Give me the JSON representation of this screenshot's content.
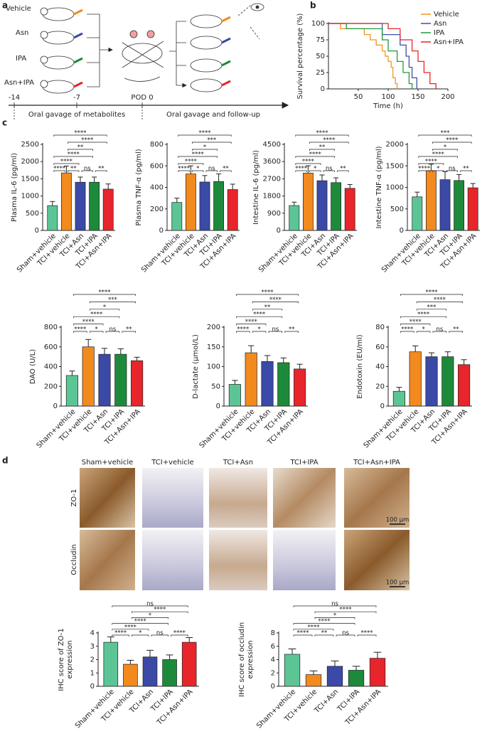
{
  "panel_labels": [
    "a",
    "b",
    "c",
    "d"
  ],
  "schematic": {
    "groups": [
      "Vehicle",
      "Asn",
      "IPA",
      "Asn+IPA"
    ],
    "timeline": [
      "-14",
      "-7",
      "POD 0"
    ],
    "phases": [
      "Oral gavage of metabolites",
      "Oral gavage and follow-up"
    ]
  },
  "images": {
    "columns": [
      "Sham+vehicle",
      "TCI+vehicle",
      "TCI+Asn",
      "TCI+IPA",
      "TCI+Asn+IPA"
    ],
    "rows": [
      "ZO-1",
      "Occludin"
    ],
    "scale_bar": "100 μm"
  },
  "chart_data": [
    {
      "type": "line",
      "xlabel": "Time (h)",
      "ylabel": "Survival percentage (%)",
      "xlim": [
        0,
        200
      ],
      "xticks": [
        50,
        100,
        150,
        200
      ],
      "ylim": [
        0,
        100
      ],
      "yticks": [
        0,
        25,
        50,
        75,
        100
      ],
      "legend": "upper right",
      "series": [
        {
          "name": "Vehicle",
          "color": "#f7941d",
          "x": [
            0,
            20,
            20,
            60,
            60,
            70,
            70,
            80,
            80,
            90,
            90,
            95,
            95,
            100,
            100,
            105,
            105,
            108,
            108,
            112,
            112,
            115,
            115
          ],
          "values": [
            100,
            100,
            92,
            92,
            83,
            83,
            75,
            75,
            67,
            67,
            58,
            58,
            50,
            50,
            42,
            42,
            33,
            33,
            17,
            17,
            8,
            8,
            0
          ]
        },
        {
          "name": "Asn",
          "color": "#3d52a8",
          "x": [
            0,
            90,
            90,
            120,
            120,
            130,
            130,
            135,
            135,
            140,
            140,
            148,
            148
          ],
          "values": [
            100,
            100,
            83,
            83,
            67,
            67,
            50,
            50,
            33,
            33,
            17,
            17,
            0
          ]
        },
        {
          "name": "IPA",
          "color": "#1e9a3f",
          "x": [
            0,
            30,
            30,
            90,
            90,
            100,
            100,
            115,
            115,
            125,
            125,
            135,
            135,
            140,
            140
          ],
          "values": [
            100,
            100,
            92,
            92,
            75,
            75,
            58,
            58,
            42,
            42,
            25,
            25,
            8,
            8,
            0
          ]
        },
        {
          "name": "Asn+IPA",
          "color": "#e8252a",
          "x": [
            0,
            100,
            100,
            120,
            120,
            140,
            140,
            150,
            150,
            160,
            160,
            170,
            170,
            180,
            180
          ],
          "values": [
            100,
            100,
            92,
            92,
            75,
            75,
            58,
            58,
            42,
            42,
            25,
            25,
            8,
            8,
            0
          ]
        }
      ]
    },
    {
      "type": "bar",
      "ylabel": "Plasma IL-6 (pg/ml)",
      "categories": [
        "Sham+vehicle",
        "TCI+vehicle",
        "TCI+Asn",
        "TCI+IPA",
        "TCI+Asn+IPA"
      ],
      "colors": [
        "#5cc596",
        "#f28a1e",
        "#3b49a7",
        "#1d8a3b",
        "#e8252a"
      ],
      "values": [
        720,
        1670,
        1400,
        1400,
        1200
      ],
      "errors": [
        120,
        200,
        150,
        150,
        150
      ],
      "ylim": [
        0,
        2500
      ],
      "yticks": [
        0,
        500,
        1000,
        1500,
        2000,
        2500
      ],
      "brackets": [
        {
          "from": 0,
          "to": 1,
          "label": "****"
        },
        {
          "from": 1,
          "to": 2,
          "label": "**"
        },
        {
          "from": 2,
          "to": 3,
          "label": "ns"
        },
        {
          "from": 3,
          "to": 4,
          "label": "**"
        },
        {
          "from": 0,
          "to": 2,
          "label": "****"
        },
        {
          "from": 0,
          "to": 3,
          "label": "****"
        },
        {
          "from": 1,
          "to": 3,
          "label": "**"
        },
        {
          "from": 1,
          "to": 4,
          "label": "****"
        },
        {
          "from": 0,
          "to": 4,
          "label": "****"
        }
      ]
    },
    {
      "type": "bar",
      "ylabel": "Plasma TNF-α (pg/ml)",
      "categories": [
        "Sham+vehicle",
        "TCI+vehicle",
        "TCI+Asn",
        "TCI+IPA",
        "TCI+Asn+IPA"
      ],
      "colors": [
        "#5cc596",
        "#f28a1e",
        "#3b49a7",
        "#1d8a3b",
        "#e8252a"
      ],
      "values": [
        260,
        525,
        450,
        455,
        380
      ],
      "errors": [
        40,
        75,
        60,
        70,
        50
      ],
      "ylim": [
        0,
        800
      ],
      "yticks": [
        0,
        200,
        400,
        600,
        800
      ],
      "brackets": [
        {
          "from": 0,
          "to": 1,
          "label": "****"
        },
        {
          "from": 1,
          "to": 2,
          "label": "*"
        },
        {
          "from": 2,
          "to": 3,
          "label": "ns"
        },
        {
          "from": 3,
          "to": 4,
          "label": "**"
        },
        {
          "from": 0,
          "to": 2,
          "label": "****"
        },
        {
          "from": 0,
          "to": 3,
          "label": "****"
        },
        {
          "from": 1,
          "to": 3,
          "label": "*"
        },
        {
          "from": 1,
          "to": 4,
          "label": "***"
        },
        {
          "from": 0,
          "to": 4,
          "label": "****"
        }
      ]
    },
    {
      "type": "bar",
      "ylabel": "Intestine IL-6 (pg/ml)",
      "categories": [
        "Sham+vehicle",
        "TCI+vehicle",
        "TCI+Asn",
        "TCI+IPA",
        "TCI+Asn+IPA"
      ],
      "colors": [
        "#5cc596",
        "#f28a1e",
        "#3b49a7",
        "#1d8a3b",
        "#e8252a"
      ],
      "values": [
        1300,
        3000,
        2600,
        2500,
        2200
      ],
      "errors": [
        180,
        380,
        300,
        250,
        200
      ],
      "ylim": [
        0,
        4500
      ],
      "yticks": [
        0,
        900,
        1800,
        2700,
        3600,
        4500
      ],
      "brackets": [
        {
          "from": 0,
          "to": 1,
          "label": "****"
        },
        {
          "from": 1,
          "to": 2,
          "label": "*"
        },
        {
          "from": 2,
          "to": 3,
          "label": "ns"
        },
        {
          "from": 3,
          "to": 4,
          "label": "**"
        },
        {
          "from": 0,
          "to": 2,
          "label": "****"
        },
        {
          "from": 0,
          "to": 3,
          "label": "****"
        },
        {
          "from": 1,
          "to": 3,
          "label": "**"
        },
        {
          "from": 1,
          "to": 4,
          "label": "****"
        },
        {
          "from": 0,
          "to": 4,
          "label": "****"
        }
      ]
    },
    {
      "type": "bar",
      "ylabel": "Intestine TNF-α (pg/ml)",
      "categories": [
        "Sham+vehicle",
        "TCI+vehicle",
        "TCI+Asn",
        "TCI+IPA",
        "TCI+Asn+IPA"
      ],
      "colors": [
        "#5cc596",
        "#f28a1e",
        "#3b49a7",
        "#1d8a3b",
        "#e8252a"
      ],
      "values": [
        780,
        1390,
        1180,
        1160,
        990
      ],
      "errors": [
        110,
        150,
        190,
        140,
        100
      ],
      "ylim": [
        0,
        2000
      ],
      "yticks": [
        0,
        500,
        1000,
        1500,
        2000
      ],
      "brackets": [
        {
          "from": 0,
          "to": 1,
          "label": "****"
        },
        {
          "from": 1,
          "to": 2,
          "label": "*"
        },
        {
          "from": 2,
          "to": 3,
          "label": "ns"
        },
        {
          "from": 3,
          "to": 4,
          "label": "**"
        },
        {
          "from": 0,
          "to": 2,
          "label": "****"
        },
        {
          "from": 0,
          "to": 3,
          "label": "****"
        },
        {
          "from": 1,
          "to": 3,
          "label": "*"
        },
        {
          "from": 1,
          "to": 4,
          "label": "****"
        },
        {
          "from": 0,
          "to": 4,
          "label": "***"
        }
      ]
    },
    {
      "type": "bar",
      "ylabel": "DAO (U/L)",
      "categories": [
        "Sham+vehicle",
        "TCI+vehicle",
        "TCI+Asn",
        "TCI+IPA",
        "TCI+Asn+IPA"
      ],
      "colors": [
        "#5cc596",
        "#f28a1e",
        "#3b49a7",
        "#1d8a3b",
        "#e8252a"
      ],
      "values": [
        310,
        600,
        525,
        525,
        460
      ],
      "errors": [
        45,
        75,
        60,
        55,
        35
      ],
      "ylim": [
        0,
        800
      ],
      "yticks": [
        0,
        200,
        400,
        600,
        800
      ],
      "brackets": [
        {
          "from": 0,
          "to": 1,
          "label": "****"
        },
        {
          "from": 1,
          "to": 2,
          "label": "*"
        },
        {
          "from": 2,
          "to": 3,
          "label": "ns"
        },
        {
          "from": 3,
          "to": 4,
          "label": "**"
        },
        {
          "from": 0,
          "to": 2,
          "label": "****"
        },
        {
          "from": 0,
          "to": 3,
          "label": "****"
        },
        {
          "from": 1,
          "to": 3,
          "label": "*"
        },
        {
          "from": 1,
          "to": 4,
          "label": "***"
        },
        {
          "from": 0,
          "to": 4,
          "label": "****"
        }
      ]
    },
    {
      "type": "bar",
      "ylabel": "D-lactate (μmol/L)",
      "categories": [
        "Sham+vehicle",
        "TCI+vehicle",
        "TCI+Asn",
        "TCI+IPA",
        "TCI+Asn+IPA"
      ],
      "colors": [
        "#5cc596",
        "#f28a1e",
        "#3b49a7",
        "#1d8a3b",
        "#e8252a"
      ],
      "values": [
        55,
        135,
        113,
        110,
        94
      ],
      "errors": [
        10,
        18,
        15,
        12,
        12
      ],
      "ylim": [
        0,
        200
      ],
      "yticks": [
        0,
        50,
        100,
        150,
        200
      ],
      "brackets": [
        {
          "from": 0,
          "to": 1,
          "label": "****"
        },
        {
          "from": 1,
          "to": 2,
          "label": "*"
        },
        {
          "from": 2,
          "to": 3,
          "label": "ns"
        },
        {
          "from": 3,
          "to": 4,
          "label": "**"
        },
        {
          "from": 0,
          "to": 2,
          "label": "****"
        },
        {
          "from": 0,
          "to": 3,
          "label": "****"
        },
        {
          "from": 1,
          "to": 3,
          "label": "**"
        },
        {
          "from": 1,
          "to": 4,
          "label": "****"
        },
        {
          "from": 0,
          "to": 4,
          "label": "****"
        }
      ]
    },
    {
      "type": "bar",
      "ylabel": "Endotoxin (EU/ml)",
      "categories": [
        "Sham+vehicle",
        "TCI+vehicle",
        "TCI+Asn",
        "TCI+IPA",
        "TCI+Asn+IPA"
      ],
      "colors": [
        "#5cc596",
        "#f28a1e",
        "#3b49a7",
        "#1d8a3b",
        "#e8252a"
      ],
      "values": [
        15,
        55,
        50,
        50,
        42
      ],
      "errors": [
        4,
        6,
        4,
        5,
        5
      ],
      "ylim": [
        0,
        80
      ],
      "yticks": [
        0,
        20,
        40,
        60,
        80
      ],
      "brackets": [
        {
          "from": 0,
          "to": 1,
          "label": "****"
        },
        {
          "from": 1,
          "to": 2,
          "label": "*"
        },
        {
          "from": 2,
          "to": 3,
          "label": "ns"
        },
        {
          "from": 3,
          "to": 4,
          "label": "**"
        },
        {
          "from": 0,
          "to": 2,
          "label": "****"
        },
        {
          "from": 0,
          "to": 3,
          "label": "****"
        },
        {
          "from": 1,
          "to": 3,
          "label": "***"
        },
        {
          "from": 1,
          "to": 4,
          "label": "****"
        },
        {
          "from": 0,
          "to": 4,
          "label": "****"
        }
      ]
    },
    {
      "type": "bar",
      "ylabel": [
        "IHC score of ZO-1",
        "expression"
      ],
      "categories": [
        "Sham+vehicle",
        "TCI+vehicle",
        "TCI+Asn",
        "TCI+IPA",
        "TCI+Asn+IPA"
      ],
      "colors": [
        "#5cc596",
        "#f28a1e",
        "#3b49a7",
        "#1d8a3b",
        "#e8252a"
      ],
      "values": [
        3.3,
        1.65,
        2.2,
        2.0,
        3.3
      ],
      "errors": [
        0.4,
        0.3,
        0.5,
        0.35,
        0.35
      ],
      "ylim": [
        0,
        4
      ],
      "yticks": [
        0,
        1,
        2,
        3,
        4
      ],
      "brackets": [
        {
          "from": 0,
          "to": 1,
          "label": "****"
        },
        {
          "from": 1,
          "to": 2,
          "label": "*"
        },
        {
          "from": 2,
          "to": 3,
          "label": "ns"
        },
        {
          "from": 3,
          "to": 4,
          "label": "****"
        },
        {
          "from": 0,
          "to": 2,
          "label": "****"
        },
        {
          "from": 0,
          "to": 3,
          "label": "****"
        },
        {
          "from": 1,
          "to": 3,
          "label": "*"
        },
        {
          "from": 1,
          "to": 4,
          "label": "****"
        },
        {
          "from": 0,
          "to": 4,
          "label": "ns"
        }
      ]
    },
    {
      "type": "bar",
      "ylabel": [
        "IHC score of occludin",
        "expression"
      ],
      "categories": [
        "Sham+vehicle",
        "TCI+vehicle",
        "TCI+Asn",
        "TCI+IPA",
        "TCI+Asn+IPA"
      ],
      "colors": [
        "#5cc596",
        "#f28a1e",
        "#3b49a7",
        "#1d8a3b",
        "#e8252a"
      ],
      "values": [
        4.8,
        1.75,
        3.0,
        2.4,
        4.2
      ],
      "errors": [
        0.8,
        0.55,
        0.8,
        0.6,
        0.9
      ],
      "ylim": [
        0,
        8
      ],
      "yticks": [
        0,
        2,
        4,
        6,
        8
      ],
      "brackets": [
        {
          "from": 0,
          "to": 1,
          "label": "****"
        },
        {
          "from": 1,
          "to": 2,
          "label": "**"
        },
        {
          "from": 2,
          "to": 3,
          "label": "ns"
        },
        {
          "from": 3,
          "to": 4,
          "label": "****"
        },
        {
          "from": 0,
          "to": 2,
          "label": "****"
        },
        {
          "from": 0,
          "to": 3,
          "label": "****"
        },
        {
          "from": 1,
          "to": 3,
          "label": "*"
        },
        {
          "from": 1,
          "to": 4,
          "label": "****"
        },
        {
          "from": 0,
          "to": 4,
          "label": "ns"
        }
      ]
    }
  ]
}
